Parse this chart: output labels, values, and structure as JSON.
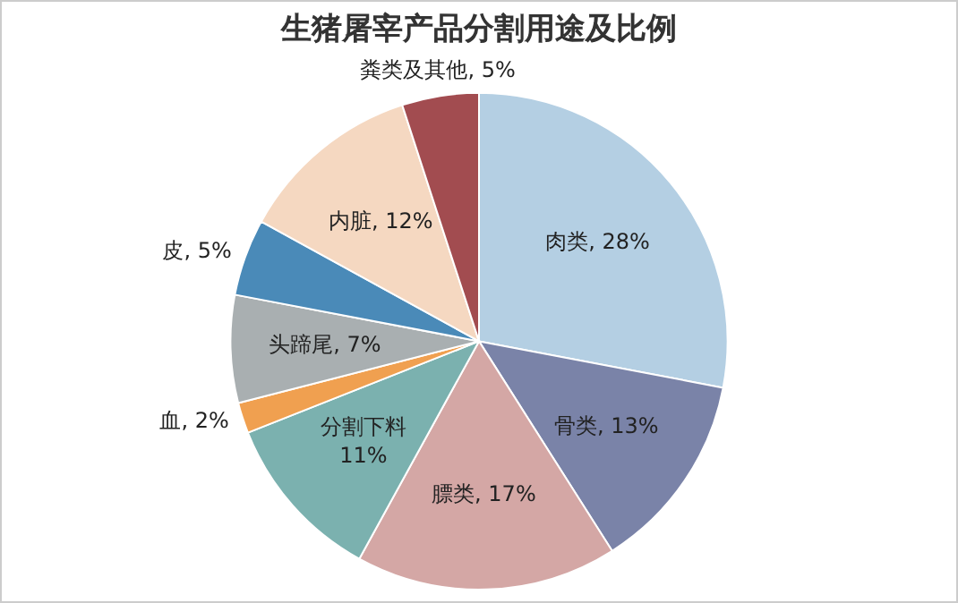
{
  "chart_data": {
    "type": "pie",
    "title": "生猪屠宰产品分割用途及比例",
    "categories": [
      "肉类",
      "骨类",
      "膘类",
      "分割下料",
      "血",
      "头蹄尾",
      "皮",
      "内脏",
      "粪类及其他"
    ],
    "values": [
      28,
      13,
      17,
      11,
      2,
      7,
      5,
      12,
      5
    ],
    "value_labels": [
      "28%",
      "13%",
      "17%",
      "11%",
      "2%",
      "7%",
      "5%",
      "12%",
      "5%"
    ],
    "colors": [
      "#b4cfe3",
      "#7a83a8",
      "#d4a7a5",
      "#7bb1af",
      "#f0a050",
      "#a9afb1",
      "#4a8ab8",
      "#f5d8c1",
      "#a24c50"
    ],
    "legend": false
  }
}
